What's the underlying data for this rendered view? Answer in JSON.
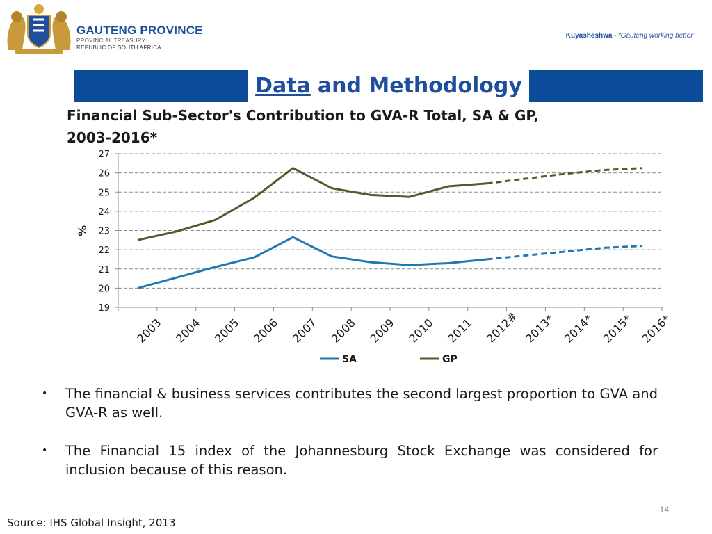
{
  "header": {
    "org_name": "GAUTENG PROVINCE",
    "org_dept": "PROVINCIAL TREASURY",
    "org_country": "REPUBLIC OF SOUTH AFRICA",
    "slogan_word": "Kuyasheshwa",
    "slogan_dash": " - ",
    "slogan_quote": "“Gauteng working better”"
  },
  "banner": {
    "title_underlined": "Data",
    "title_rest": "and Methodology"
  },
  "chart_data": {
    "type": "line",
    "title_line1": "Financial Sub-Sector's Contribution to GVA-R Total, SA & GP,",
    "title_line2": "2003-2016*",
    "ylabel": "%",
    "ylim": [
      19,
      27
    ],
    "yticks": [
      19,
      20,
      21,
      22,
      23,
      24,
      25,
      26,
      27
    ],
    "categories": [
      "2003",
      "2004",
      "2005",
      "2006",
      "2007",
      "2008",
      "2009",
      "2010",
      "2011",
      "2012#",
      "2013*",
      "2014*",
      "2015*",
      "2016*"
    ],
    "dashed_from_index": 9,
    "grid": "horizontal dashed",
    "legend_position": "bottom",
    "series": [
      {
        "name": "SA",
        "color": "#1f77b4",
        "values": [
          20.0,
          20.55,
          21.1,
          21.6,
          22.65,
          21.65,
          21.35,
          21.2,
          21.3,
          21.5,
          21.7,
          21.9,
          22.1,
          22.2
        ]
      },
      {
        "name": "GP",
        "color": "#4f5d2a",
        "values": [
          22.5,
          22.95,
          23.55,
          24.7,
          26.25,
          25.2,
          24.85,
          24.75,
          25.3,
          25.45,
          25.7,
          25.95,
          26.15,
          26.25
        ]
      }
    ]
  },
  "bullets": [
    {
      "symbol": "•",
      "text": "The financial & business services contributes the second largest proportion to GVA and GVA-R as well."
    },
    {
      "symbol": "•",
      "text": "The Financial 15 index of the Johannesburg Stock Exchange was considered for inclusion because of this reason."
    }
  ],
  "page_number": "14",
  "source": "Source: IHS Global Insight, 2013"
}
